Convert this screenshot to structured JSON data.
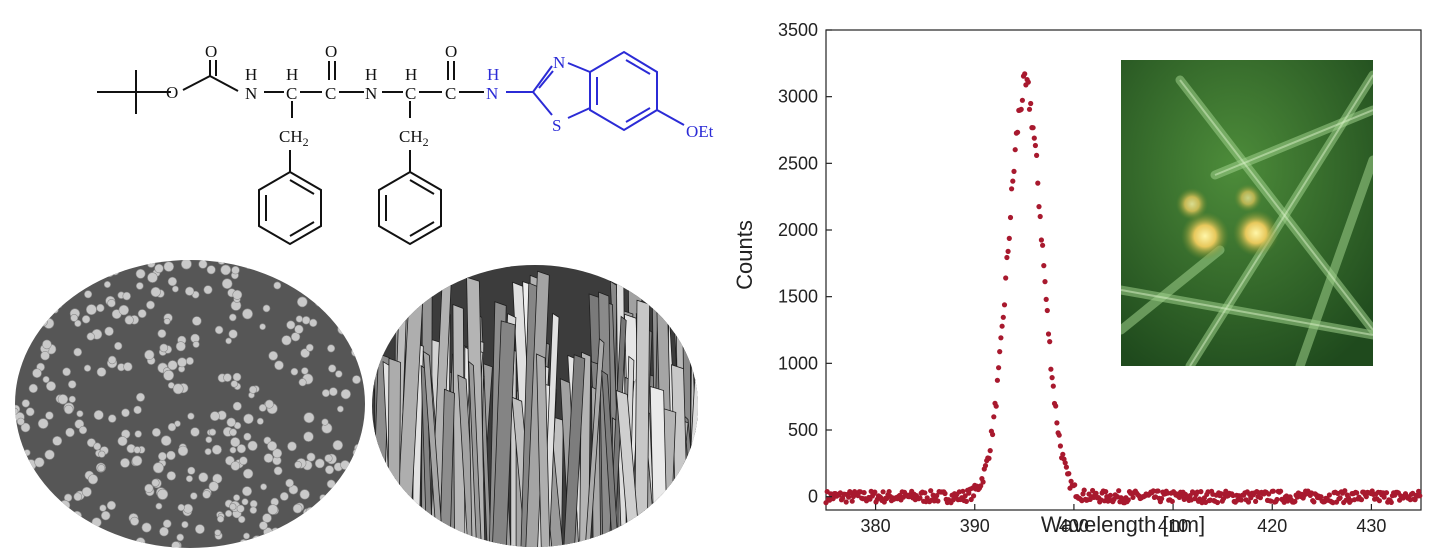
{
  "colors": {
    "data_points": "#a8192e",
    "benzothiazole_fragment": "#2b2bd6",
    "bond_black": "#111111",
    "sem_background": "#555555",
    "inset_background": "#2f6b2a"
  },
  "molecule": {
    "atoms": {
      "o_ester": "O",
      "o_carbonyl_1": "O",
      "o_carbonyl_2": "O",
      "o_carbonyl_3": "O",
      "nh_1_h": "H",
      "nh_1_n": "N",
      "ch_1_h": "H",
      "ch_1_c": "C",
      "c_carbonyl_1": "C",
      "c_carbonyl_2": "C",
      "c_carbonyl_3": "C",
      "nh_2_h": "H",
      "nh_2_n": "N",
      "ch_2_h": "H",
      "ch_2_c": "C",
      "ch2_1": "CH",
      "ch2_2": "CH",
      "sub_2": "2",
      "nh_3_h": "H",
      "nh_3_n": "N",
      "thiazole_n": "N",
      "thiazole_s": "S",
      "ethoxy": "OEt"
    }
  },
  "chart_data": {
    "type": "scatter",
    "title": "",
    "xlabel": "Wavelength [nm]",
    "ylabel": "Counts",
    "xlim": [
      375,
      435
    ],
    "ylim": [
      -100,
      3500
    ],
    "x_ticks": [
      380,
      390,
      400,
      410,
      420,
      430
    ],
    "y_ticks": [
      0,
      500,
      1000,
      1500,
      2000,
      2500,
      3000,
      3500
    ],
    "grid": false,
    "legend": "none",
    "series": [
      {
        "shape": "gaussian peak on flat baseline",
        "peak_x": 395.1,
        "peak_y": 3060,
        "fwhm": 4.1,
        "baseline": 0,
        "noise_amplitude": 45,
        "x_step": 0.12,
        "x_range": [
          375,
          435
        ]
      }
    ]
  }
}
